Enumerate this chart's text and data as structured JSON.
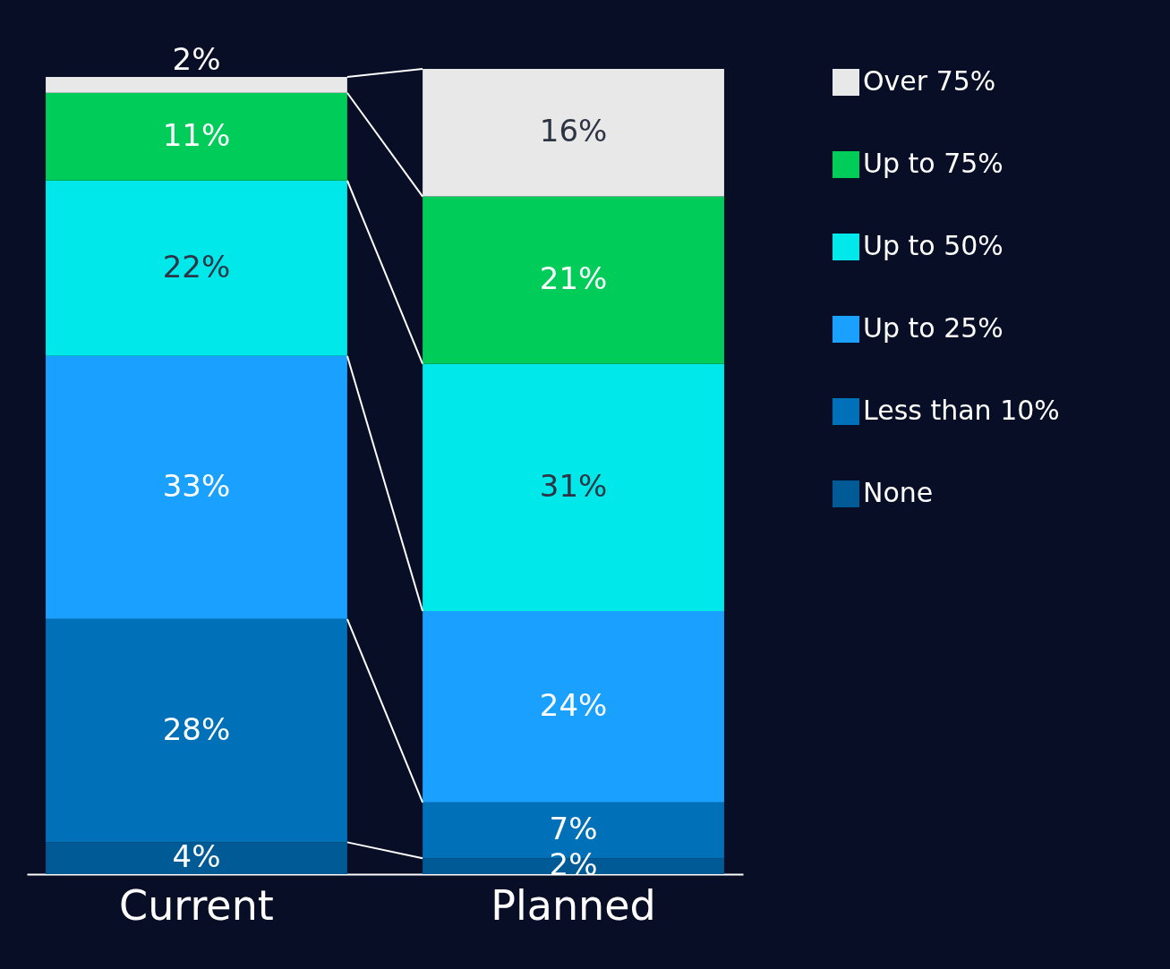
{
  "chart_data": {
    "type": "bar",
    "stacked": true,
    "legend": "right",
    "grid": false,
    "categories": [
      "Current",
      "Planned"
    ],
    "series": [
      {
        "name": "None",
        "color": "#005a96",
        "values": [
          4,
          2
        ],
        "value_labels": [
          "4%",
          "2%"
        ]
      },
      {
        "name": "Less than 10%",
        "color": "#0070b8",
        "values": [
          28,
          7
        ],
        "value_labels": [
          "28%",
          "7%"
        ]
      },
      {
        "name": "Up to 25%",
        "color": "#1aa0ff",
        "values": [
          33,
          24
        ],
        "value_labels": [
          "33%",
          "24%"
        ]
      },
      {
        "name": "Up to 50%",
        "color": "#00e8ea",
        "values": [
          22,
          31
        ],
        "value_labels": [
          "22%",
          "31%"
        ]
      },
      {
        "name": "Up to 75%",
        "color": "#00cc5a",
        "values": [
          11,
          21
        ],
        "value_labels": [
          "11%",
          "21%"
        ]
      },
      {
        "name": "Over 75%",
        "color": "#e8e8e8",
        "values": [
          2,
          16
        ],
        "value_labels": [
          "2%",
          "16%"
        ]
      }
    ]
  }
}
